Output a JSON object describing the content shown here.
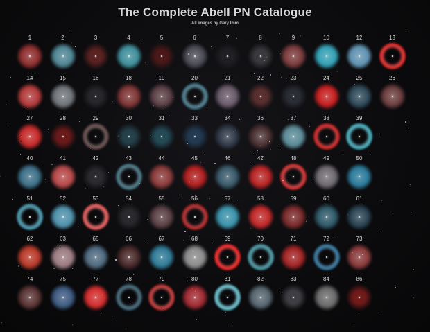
{
  "title": "The Complete Abell PN Catalogue",
  "subtitle": "All images by Gary Imm",
  "rows": [
    [
      {
        "label": "1",
        "color": "#8e2e2e",
        "style": "disc"
      },
      {
        "label": "2",
        "color": "#4f8593",
        "style": "disc"
      },
      {
        "label": "3",
        "color": "#5b2222",
        "style": "faint"
      },
      {
        "label": "4",
        "color": "#3f8e9a",
        "style": "disc"
      },
      {
        "label": "5",
        "color": "#4a1818",
        "style": "faint"
      },
      {
        "label": "6",
        "color": "#4a4a55",
        "style": "disc"
      },
      {
        "label": "7",
        "color": "#202024",
        "style": "faint"
      },
      {
        "label": "8",
        "color": "#3a3a3e",
        "style": "faint"
      },
      {
        "label": "9",
        "color": "#7a3b3b",
        "style": "disc"
      },
      {
        "label": "10",
        "color": "#33a0b4",
        "style": "disc"
      },
      {
        "label": "12",
        "color": "#5f92b0",
        "style": "disc"
      },
      {
        "label": "13",
        "color": "#d42020",
        "style": "ring"
      }
    ],
    [
      {
        "label": "14",
        "color": "#b23a3a",
        "style": "disc"
      },
      {
        "label": "15",
        "color": "#6f7378",
        "style": "disc"
      },
      {
        "label": "16",
        "color": "#28282c",
        "style": "faint"
      },
      {
        "label": "18",
        "color": "#7e3434",
        "style": "disc"
      },
      {
        "label": "19",
        "color": "#5b3f45",
        "style": "disc"
      },
      {
        "label": "20",
        "color": "#3e6f80",
        "style": "ring"
      },
      {
        "label": "21",
        "color": "#6a5a6a",
        "style": "disc"
      },
      {
        "label": "22",
        "color": "#5a2f2f",
        "style": "faint"
      },
      {
        "label": "23",
        "color": "#2a2d35",
        "style": "faint"
      },
      {
        "label": "24",
        "color": "#c41f1f",
        "style": "disc"
      },
      {
        "label": "25",
        "color": "#2f4a5a",
        "style": "disc"
      },
      {
        "label": "26",
        "color": "#6b3d3d",
        "style": "disc"
      }
    ],
    [
      {
        "label": "27",
        "color": "#c42a2a",
        "style": "disc"
      },
      {
        "label": "28",
        "color": "#6b1a1a",
        "style": "faint"
      },
      {
        "label": "29",
        "color": "#5a4040",
        "style": "ring"
      },
      {
        "label": "30",
        "color": "#244048",
        "style": "faint"
      },
      {
        "label": "31",
        "color": "#244a55",
        "style": "faint"
      },
      {
        "label": "33",
        "color": "#223a52",
        "style": "faint"
      },
      {
        "label": "34",
        "color": "#303a48",
        "style": "disc"
      },
      {
        "label": "36",
        "color": "#4a3030",
        "style": "disc"
      },
      {
        "label": "37",
        "color": "#5a8a96",
        "style": "disc"
      },
      {
        "label": "38",
        "color": "#c21c1c",
        "style": "ring"
      },
      {
        "label": "39",
        "color": "#3aa0ae",
        "style": "ring"
      }
    ],
    [
      {
        "label": "40",
        "color": "#3d7088",
        "style": "disc"
      },
      {
        "label": "41",
        "color": "#b54848",
        "style": "disc"
      },
      {
        "label": "42",
        "color": "#2c2c30",
        "style": "faint"
      },
      {
        "label": "43",
        "color": "#3e6a78",
        "style": "ring"
      },
      {
        "label": "44",
        "color": "#8a3a3a",
        "style": "disc"
      },
      {
        "label": "45",
        "color": "#b01e1e",
        "style": "disc"
      },
      {
        "label": "46",
        "color": "#3a5a6a",
        "style": "disc"
      },
      {
        "label": "47",
        "color": "#b82424",
        "style": "disc"
      },
      {
        "label": "48",
        "color": "#c22626",
        "style": "ring"
      },
      {
        "label": "49",
        "color": "#6e6a70",
        "style": "disc"
      },
      {
        "label": "50",
        "color": "#2a7a9a",
        "style": "disc"
      }
    ],
    [
      {
        "label": "51",
        "color": "#3e8aa0",
        "style": "ring"
      },
      {
        "label": "52",
        "color": "#4e90aa",
        "style": "disc"
      },
      {
        "label": "53",
        "color": "#d85050",
        "style": "ring"
      },
      {
        "label": "54",
        "color": "#2a2a2e",
        "style": "faint"
      },
      {
        "label": "55",
        "color": "#5a4044",
        "style": "disc"
      },
      {
        "label": "56",
        "color": "#a51e1e",
        "style": "ring"
      },
      {
        "label": "57",
        "color": "#3a92aa",
        "style": "disc"
      },
      {
        "label": "58",
        "color": "#c02828",
        "style": "disc"
      },
      {
        "label": "59",
        "color": "#7a2a2a",
        "style": "disc"
      },
      {
        "label": "60",
        "color": "#2f5a6a",
        "style": "disc"
      },
      {
        "label": "61",
        "color": "#2a4452",
        "style": "disc"
      }
    ],
    [
      {
        "label": "62",
        "color": "#b83a2a",
        "style": "disc"
      },
      {
        "label": "63",
        "color": "#9a7a80",
        "style": "disc"
      },
      {
        "label": "65",
        "color": "#506a80",
        "style": "disc"
      },
      {
        "label": "66",
        "color": "#4a2a2a",
        "style": "disc"
      },
      {
        "label": "67",
        "color": "#2f7a96",
        "style": "disc"
      },
      {
        "label": "68",
        "color": "#8a8a8a",
        "style": "disc"
      },
      {
        "label": "69",
        "color": "#e01c1c",
        "style": "ring"
      },
      {
        "label": "70",
        "color": "#3e8a96",
        "style": "ring"
      },
      {
        "label": "71",
        "color": "#a32424",
        "style": "disc"
      },
      {
        "label": "72",
        "color": "#2a6a90",
        "style": "ring"
      },
      {
        "label": "73",
        "color": "#8a3a3a",
        "style": "disc"
      }
    ],
    [
      {
        "label": "74",
        "color": "#5a3434",
        "style": "disc"
      },
      {
        "label": "75",
        "color": "#3e5a80",
        "style": "disc"
      },
      {
        "label": "77",
        "color": "#d02c2c",
        "style": "disc"
      },
      {
        "label": "78",
        "color": "#355a6a",
        "style": "ring"
      },
      {
        "label": "79",
        "color": "#b02a2a",
        "style": "ring"
      },
      {
        "label": "80",
        "color": "#a02a32",
        "style": "disc"
      },
      {
        "label": "81",
        "color": "#5ab0be",
        "style": "ring"
      },
      {
        "label": "82",
        "color": "#55646e",
        "style": "disc"
      },
      {
        "label": "83",
        "color": "#3e3e44",
        "style": "faint"
      },
      {
        "label": "84",
        "color": "#6a6a6a",
        "style": "disc"
      },
      {
        "label": "86",
        "color": "#701a1a",
        "style": "faint"
      }
    ]
  ]
}
